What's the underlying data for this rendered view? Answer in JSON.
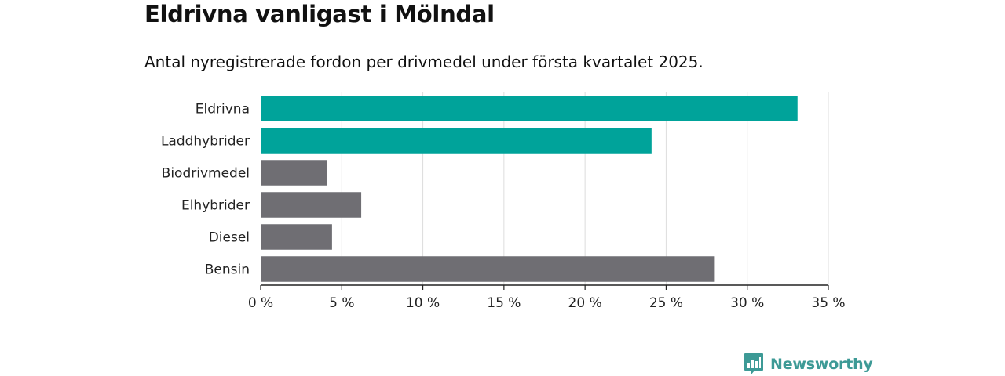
{
  "header": {
    "title": "Eldrivna vanligast i Mölndal",
    "subtitle": "Antal nyregistrerade fordon per drivmedel under första kvartalet 2025."
  },
  "branding": {
    "name": "Newsworthy",
    "logo_icon": "bar-chart-bubble-icon",
    "color": "#3d9a96"
  },
  "chart_data": {
    "type": "bar",
    "orientation": "horizontal",
    "categories": [
      "Eldrivna",
      "Laddhybrider",
      "Biodrivmedel",
      "Elhybrider",
      "Diesel",
      "Bensin"
    ],
    "values": [
      33.1,
      24.1,
      4.1,
      6.2,
      4.4,
      28.0
    ],
    "highlight_color": "#00a39a",
    "default_color": "#6f6e73",
    "highlighted": [
      true,
      true,
      false,
      false,
      false,
      false
    ],
    "xlim": [
      0,
      35
    ],
    "x_ticks": [
      0,
      5,
      10,
      15,
      20,
      25,
      30,
      35
    ],
    "x_tick_labels": [
      "0 %",
      "5 %",
      "10 %",
      "15 %",
      "20 %",
      "25 %",
      "30 %",
      "35 %"
    ],
    "grid": true
  }
}
